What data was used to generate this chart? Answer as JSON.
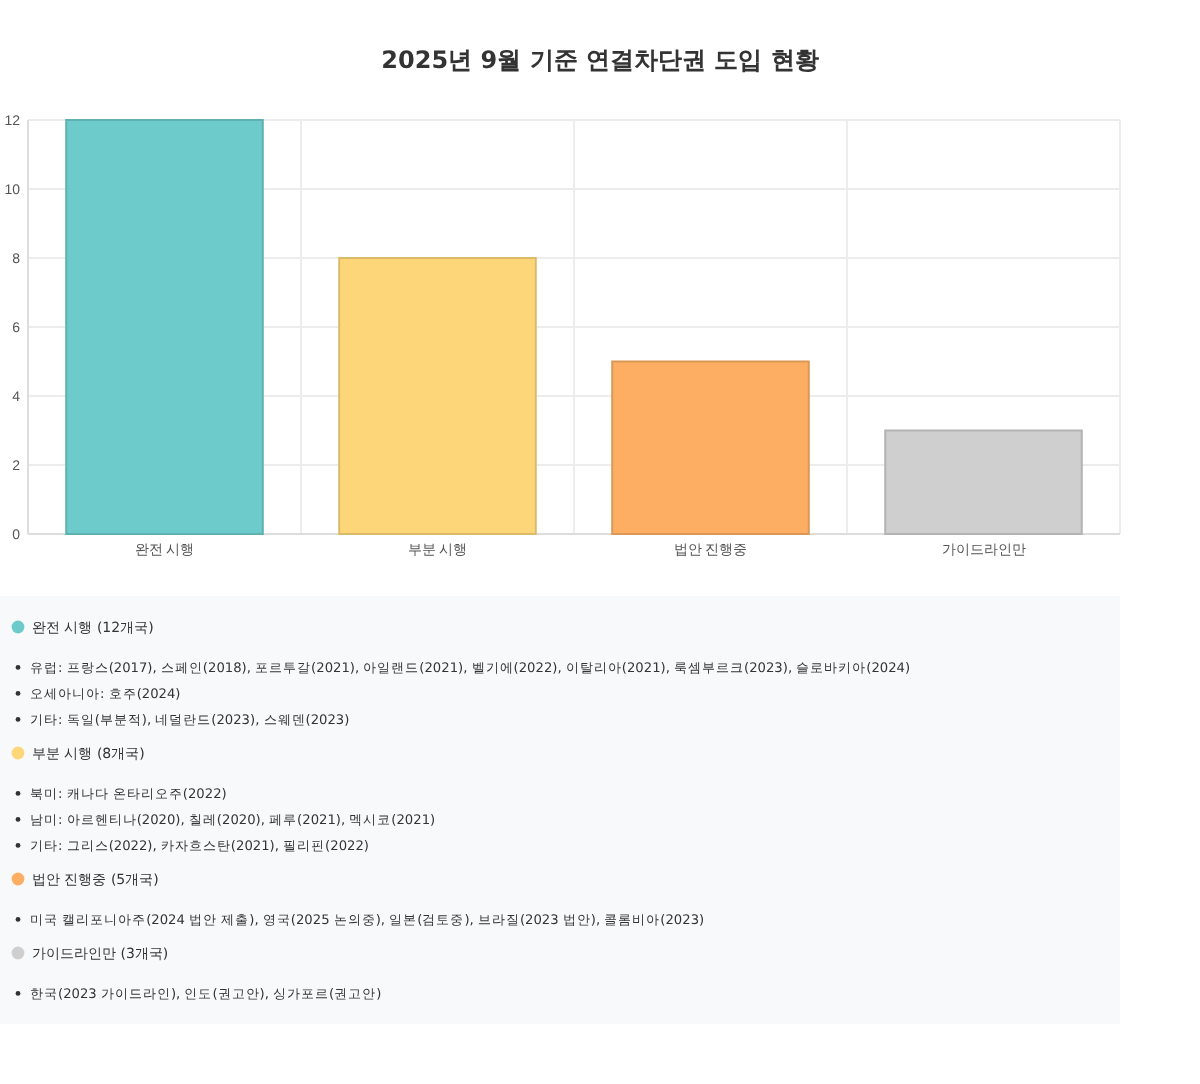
{
  "chart_data": {
    "type": "bar",
    "title": "2025년 9월 기준 연결차단권 도입 현황",
    "categories": [
      "완전 시행",
      "부분 시행",
      "법안 진행중",
      "가이드라인만"
    ],
    "values": [
      12,
      8,
      5,
      3
    ],
    "colors": [
      "#6ecbcb",
      "#fdd679",
      "#fdae63",
      "#cfcfcf"
    ],
    "ylim": [
      0,
      12
    ],
    "yticks": [
      0,
      2,
      4,
      6,
      8,
      10,
      12
    ],
    "grid": true,
    "annotations": [
      "완전 시행 (12개국)",
      "유럽: 프랑스(2017), 스페인(2018), 포르투갈(2021), 아일랜드(2021), 벨기에(2022), 이탈리아(2021), 룩셈부르크(2023), 슬로바키아(2024)",
      "오세아니아: 호주(2024)",
      "기타: 독일(부분적), 네덜란드(2023), 스웨덴(2023)",
      "부분 시행 (8개국)",
      "북미: 캐나다 온타리오주(2022)",
      "남미: 아르헨티나(2020), 칠레(2020), 페루(2021), 멕시코(2021)",
      "기타: 그리스(2022), 카자흐스탄(2021), 필리핀(2022)",
      "법안 진행중 (5개국)",
      "미국 캘리포니아주(2024 법안 제출), 영국(2025 논의중), 일본(검토중), 브라질(2023 법안), 콜롬비아(2023)",
      "가이드라인만 (3개국)",
      "한국(2023 가이드라인), 인도(권고안), 싱가포르(권고안)"
    ]
  }
}
